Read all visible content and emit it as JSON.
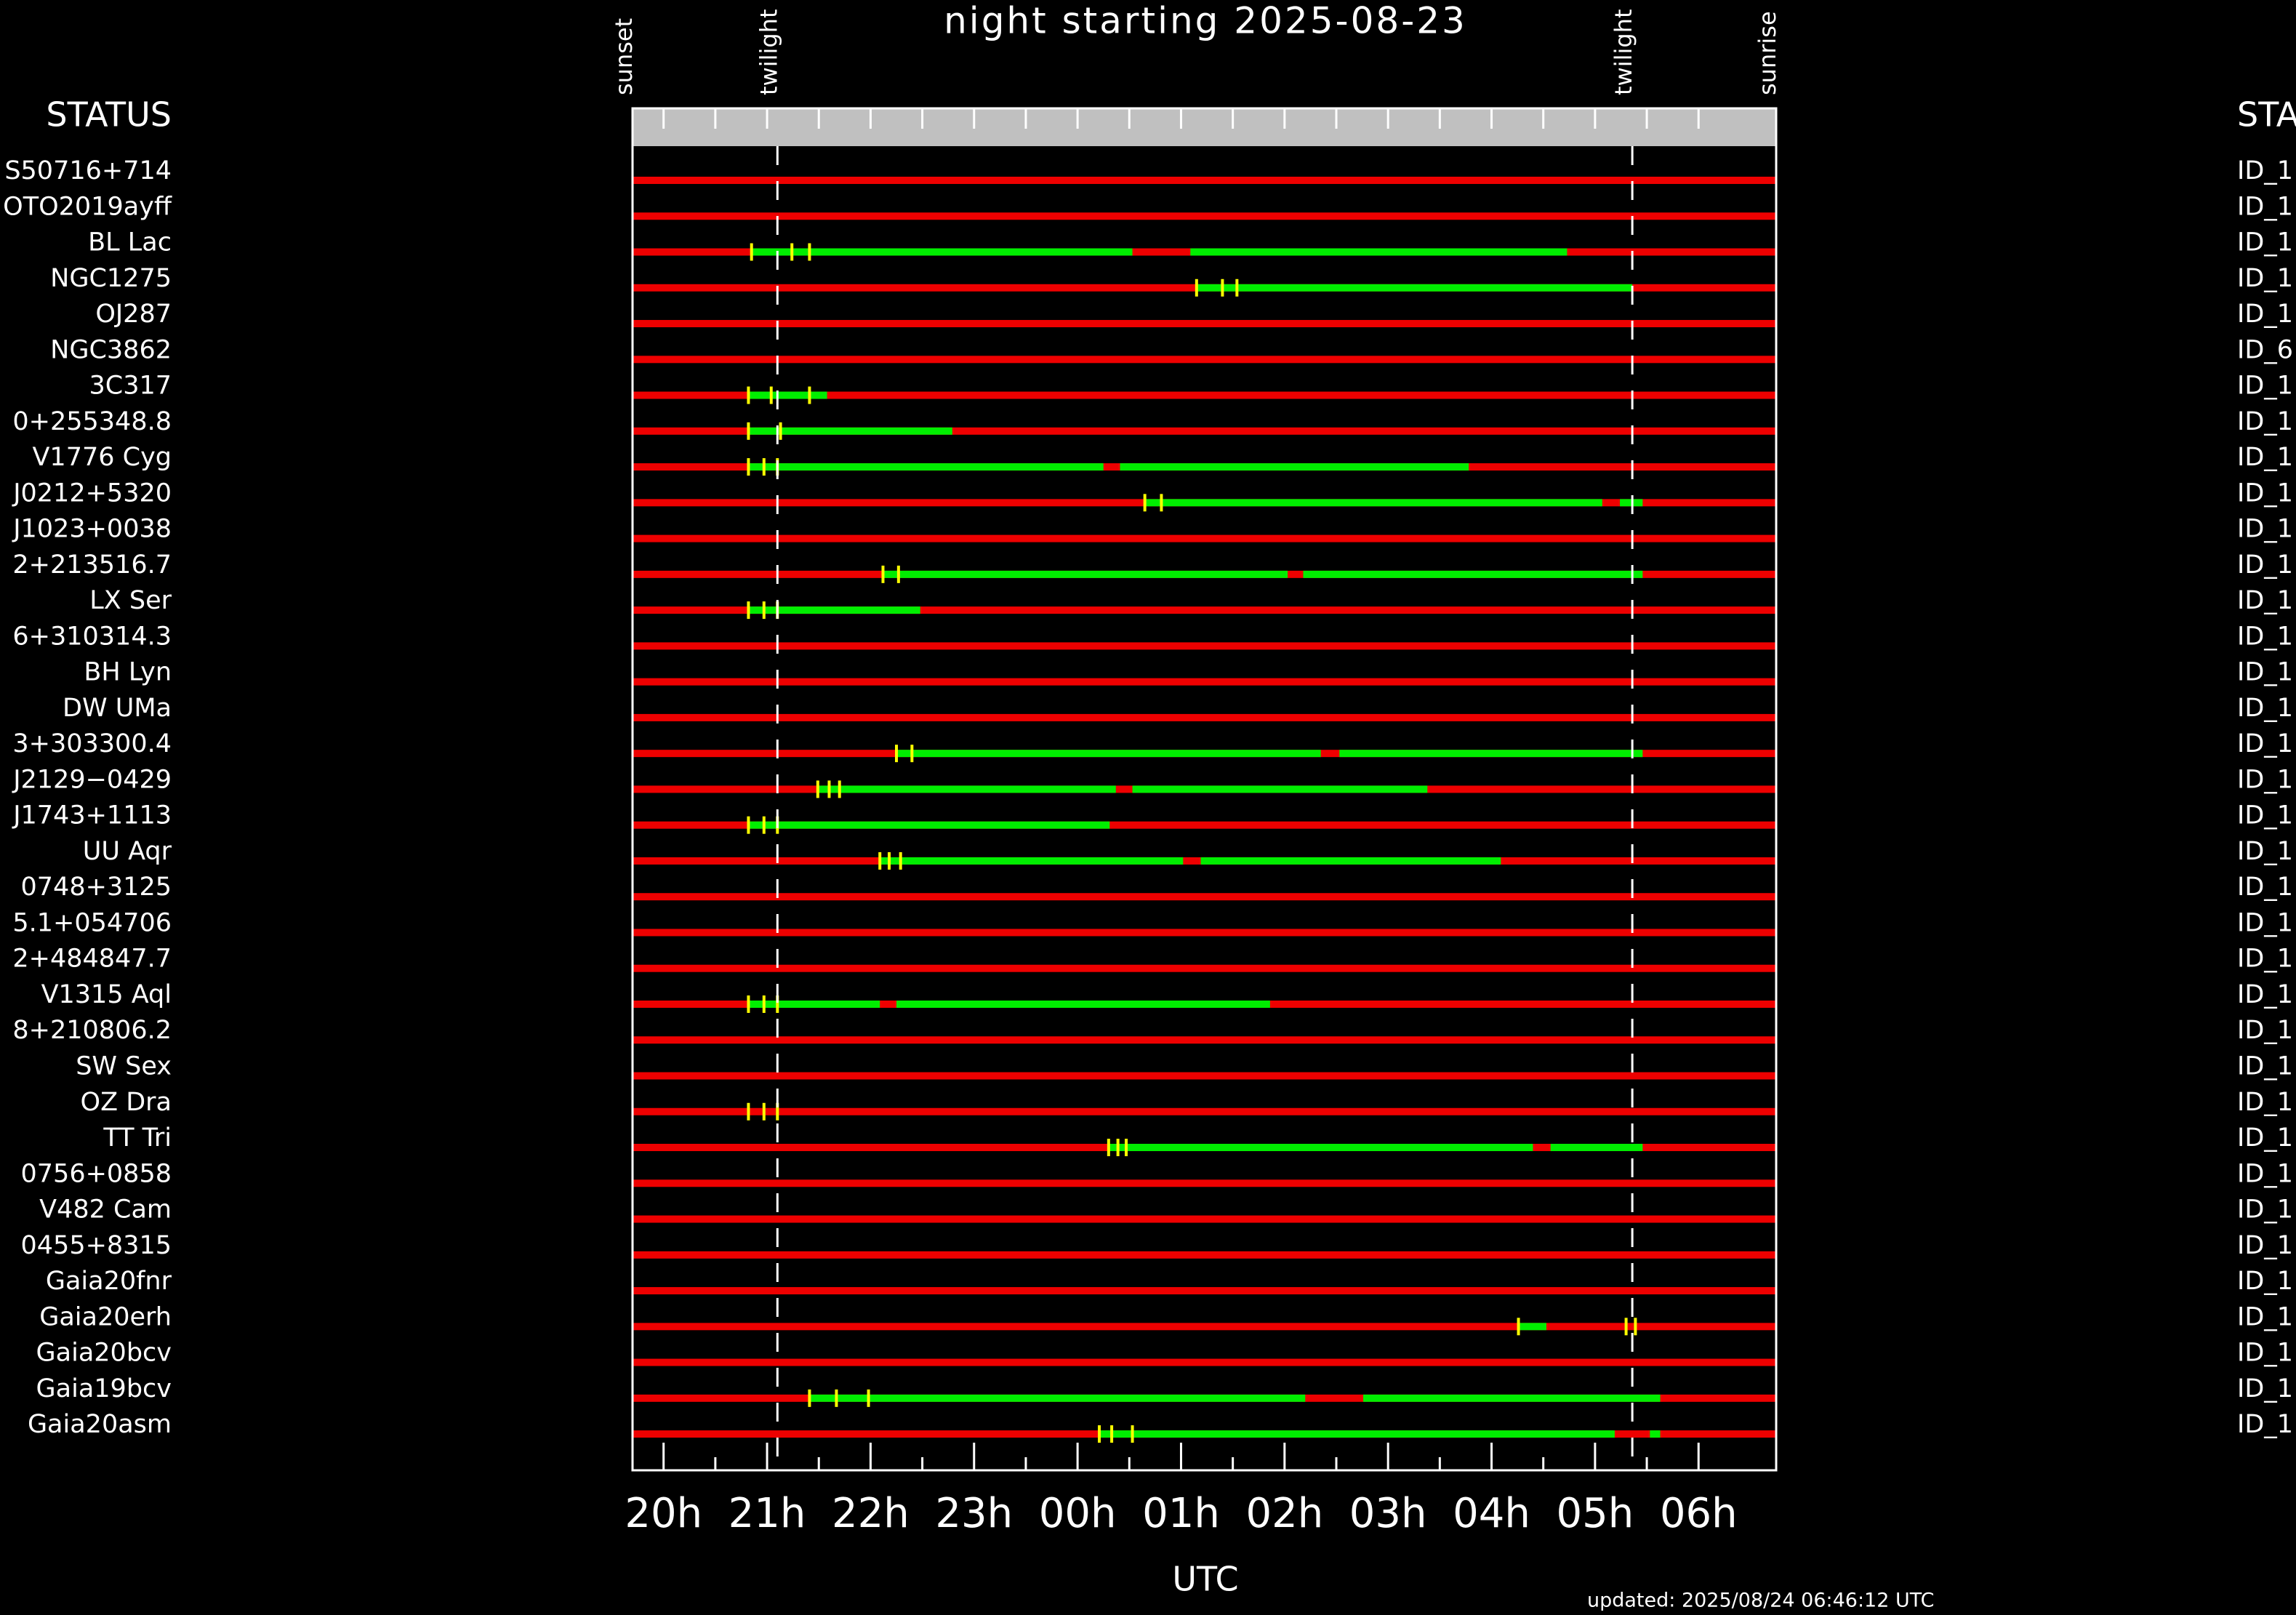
{
  "chart_data": {
    "type": "timeline",
    "title": "night starting 2025-08-23",
    "xlabel": "UTC",
    "updated": "updated: 2025/08/24 06:46:12 UTC",
    "left_header": "STATUS",
    "right_header": "STA",
    "xlim": [
      19.7,
      30.75
    ],
    "xticks": [
      {
        "value": 20,
        "label": "20h"
      },
      {
        "value": 21,
        "label": "21h"
      },
      {
        "value": 22,
        "label": "22h"
      },
      {
        "value": 23,
        "label": "23h"
      },
      {
        "value": 24,
        "label": "00h"
      },
      {
        "value": 25,
        "label": "01h"
      },
      {
        "value": 26,
        "label": "02h"
      },
      {
        "value": 27,
        "label": "03h"
      },
      {
        "value": 28,
        "label": "04h"
      },
      {
        "value": 29,
        "label": "05h"
      },
      {
        "value": 30,
        "label": "06h"
      }
    ],
    "events": [
      {
        "label": "sunset",
        "x": 19.7
      },
      {
        "label": "twilight",
        "x": 21.1
      },
      {
        "label": "twilight",
        "x": 29.36
      },
      {
        "label": "sunrise",
        "x": 30.75
      }
    ],
    "colors": {
      "night": "#ee0000",
      "visible": "#00ee00",
      "marker": "#ffff00"
    },
    "rows": [
      {
        "name": "S50716+714",
        "id": "ID_1",
        "visible": [],
        "marks": []
      },
      {
        "name": "OTO2019ayff",
        "id": "ID_1",
        "visible": [],
        "marks": []
      },
      {
        "name": "BL Lac",
        "id": "ID_1",
        "visible": [
          [
            20.85,
            24.53
          ],
          [
            25.09,
            28.73
          ]
        ],
        "marks": [
          20.85,
          21.24,
          21.41
        ]
      },
      {
        "name": "NGC1275",
        "id": "ID_1",
        "visible": [
          [
            25.15,
            29.36
          ]
        ],
        "marks": [
          25.15,
          25.4,
          25.54
        ]
      },
      {
        "name": "OJ287",
        "id": "ID_1",
        "visible": [],
        "marks": []
      },
      {
        "name": "NGC3862",
        "id": "ID_6",
        "visible": [],
        "marks": []
      },
      {
        "name": "3C317",
        "id": "ID_1",
        "visible": [
          [
            20.82,
            21.58
          ]
        ],
        "marks": [
          20.82,
          21.04,
          21.41
        ]
      },
      {
        "name": "0+255348.8",
        "id": "ID_1",
        "visible": [
          [
            20.82,
            22.79
          ]
        ],
        "marks": [
          20.82,
          21.13
        ]
      },
      {
        "name": "V1776 Cyg",
        "id": "ID_1",
        "visible": [
          [
            20.82,
            24.25
          ],
          [
            24.41,
            27.78
          ]
        ],
        "marks": [
          20.82,
          20.97,
          21.1
        ]
      },
      {
        "name": "J0212+5320",
        "id": "ID_1",
        "visible": [
          [
            24.65,
            29.07
          ],
          [
            29.24,
            29.46
          ]
        ],
        "marks": [
          24.65,
          24.81
        ]
      },
      {
        "name": "J1023+0038",
        "id": "ID_1",
        "visible": [],
        "marks": []
      },
      {
        "name": "2+213516.7",
        "id": "ID_1",
        "visible": [
          [
            22.12,
            26.03
          ],
          [
            26.18,
            29.46
          ]
        ],
        "marks": [
          22.12,
          22.27
        ]
      },
      {
        "name": "LX Ser",
        "id": "ID_1",
        "visible": [
          [
            20.82,
            22.48
          ]
        ],
        "marks": [
          20.82,
          20.97,
          21.1
        ]
      },
      {
        "name": "6+310314.3",
        "id": "ID_1",
        "visible": [],
        "marks": []
      },
      {
        "name": "BH Lyn",
        "id": "ID_1",
        "visible": [],
        "marks": []
      },
      {
        "name": "DW UMa",
        "id": "ID_1",
        "visible": [],
        "marks": []
      },
      {
        "name": "3+303300.4",
        "id": "ID_1",
        "visible": [
          [
            22.25,
            26.35
          ],
          [
            26.53,
            29.46
          ]
        ],
        "marks": [
          22.25,
          22.4
        ]
      },
      {
        "name": "J2129−0429",
        "id": "ID_1",
        "visible": [
          [
            21.49,
            24.37
          ],
          [
            24.53,
            27.38
          ]
        ],
        "marks": [
          21.49,
          21.6,
          21.7
        ]
      },
      {
        "name": "J1743+1113",
        "id": "ID_1",
        "visible": [
          [
            20.82,
            24.31
          ]
        ],
        "marks": [
          20.82,
          20.97,
          21.1
        ]
      },
      {
        "name": "UU Aqr",
        "id": "ID_1",
        "visible": [
          [
            22.09,
            25.02
          ],
          [
            25.19,
            28.09
          ]
        ],
        "marks": [
          22.09,
          22.18,
          22.29
        ]
      },
      {
        "name": "0748+3125",
        "id": "ID_1",
        "visible": [],
        "marks": []
      },
      {
        "name": "5.1+054706",
        "id": "ID_1",
        "visible": [],
        "marks": []
      },
      {
        "name": "2+484847.7",
        "id": "ID_1",
        "visible": [],
        "marks": []
      },
      {
        "name": "V1315 Aql",
        "id": "ID_1",
        "visible": [
          [
            20.82,
            22.09
          ],
          [
            22.25,
            25.86
          ]
        ],
        "marks": [
          20.82,
          20.97,
          21.1
        ]
      },
      {
        "name": "8+210806.2",
        "id": "ID_1",
        "visible": [],
        "marks": []
      },
      {
        "name": "SW Sex",
        "id": "ID_1",
        "visible": [],
        "marks": []
      },
      {
        "name": "OZ Dra",
        "id": "ID_1",
        "visible": [],
        "marks": [
          20.82,
          20.97,
          21.1
        ]
      },
      {
        "name": "TT Tri",
        "id": "ID_1",
        "visible": [
          [
            24.3,
            28.4
          ],
          [
            28.57,
            29.46
          ]
        ],
        "marks": [
          24.3,
          24.39,
          24.47
        ]
      },
      {
        "name": "0756+0858",
        "id": "ID_1",
        "visible": [],
        "marks": []
      },
      {
        "name": "V482 Cam",
        "id": "ID_1",
        "visible": [],
        "marks": []
      },
      {
        "name": "0455+8315",
        "id": "ID_1",
        "visible": [],
        "marks": []
      },
      {
        "name": "Gaia20fnr",
        "id": "ID_1",
        "visible": [],
        "marks": []
      },
      {
        "name": "Gaia20erh",
        "id": "ID_1",
        "visible": [
          [
            28.26,
            28.53
          ]
        ],
        "marks": [
          28.26,
          29.3,
          29.39
        ]
      },
      {
        "name": "Gaia20bcv",
        "id": "ID_1",
        "visible": [],
        "marks": []
      },
      {
        "name": "Gaia19bcv",
        "id": "ID_1",
        "visible": [
          [
            21.41,
            26.2
          ],
          [
            26.76,
            29.63
          ]
        ],
        "marks": [
          21.41,
          21.67,
          21.98
        ]
      },
      {
        "name": "Gaia20asm",
        "id": "ID_1",
        "visible": [
          [
            24.21,
            29.19
          ],
          [
            29.53,
            29.63
          ]
        ],
        "marks": [
          24.21,
          24.33,
          24.53
        ]
      }
    ]
  }
}
